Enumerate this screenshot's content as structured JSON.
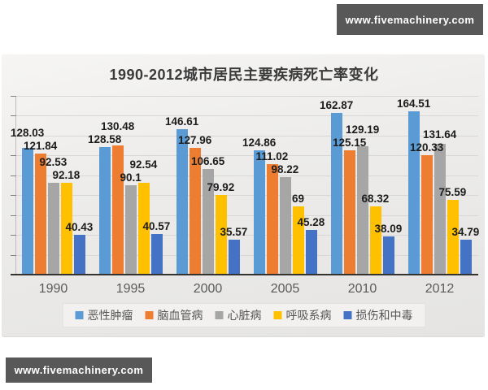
{
  "watermarks": {
    "top_right": "www.fivemachinery.com",
    "bottom_left": "www.fivemachinery.com",
    "bg_color": "#585858"
  },
  "chart_data": {
    "type": "bar",
    "title": "1990-2012城市居民主要疾病死亡率变化",
    "xlabel": "",
    "ylabel": "",
    "categories": [
      "1990",
      "1995",
      "2000",
      "2005",
      "2010",
      "2012"
    ],
    "series": [
      {
        "name": "恶性肿瘤",
        "color": "#5B9BD5",
        "values": [
          128.03,
          128.58,
          146.61,
          124.86,
          162.87,
          164.51
        ]
      },
      {
        "name": "脑血管病",
        "color": "#ED7D31",
        "values": [
          121.84,
          130.48,
          127.96,
          111.02,
          125.15,
          120.33
        ]
      },
      {
        "name": "心脏病",
        "color": "#A6A6A6",
        "values": [
          92.53,
          90.1,
          106.65,
          98.22,
          129.19,
          131.64
        ]
      },
      {
        "name": "呼吸系病",
        "color": "#FFC000",
        "values": [
          92.18,
          92.54,
          79.92,
          69,
          68.32,
          75.59
        ]
      },
      {
        "name": "损伤和中毒",
        "color": "#4472C4",
        "values": [
          40.43,
          40.57,
          35.57,
          45.28,
          38.09,
          34.79
        ]
      }
    ],
    "ylim": [
      0,
      180
    ],
    "y_major_unit": 20,
    "grid": true,
    "y_axis_tick_labels_visible": false,
    "value_labels": true,
    "legend_position": "bottom"
  }
}
